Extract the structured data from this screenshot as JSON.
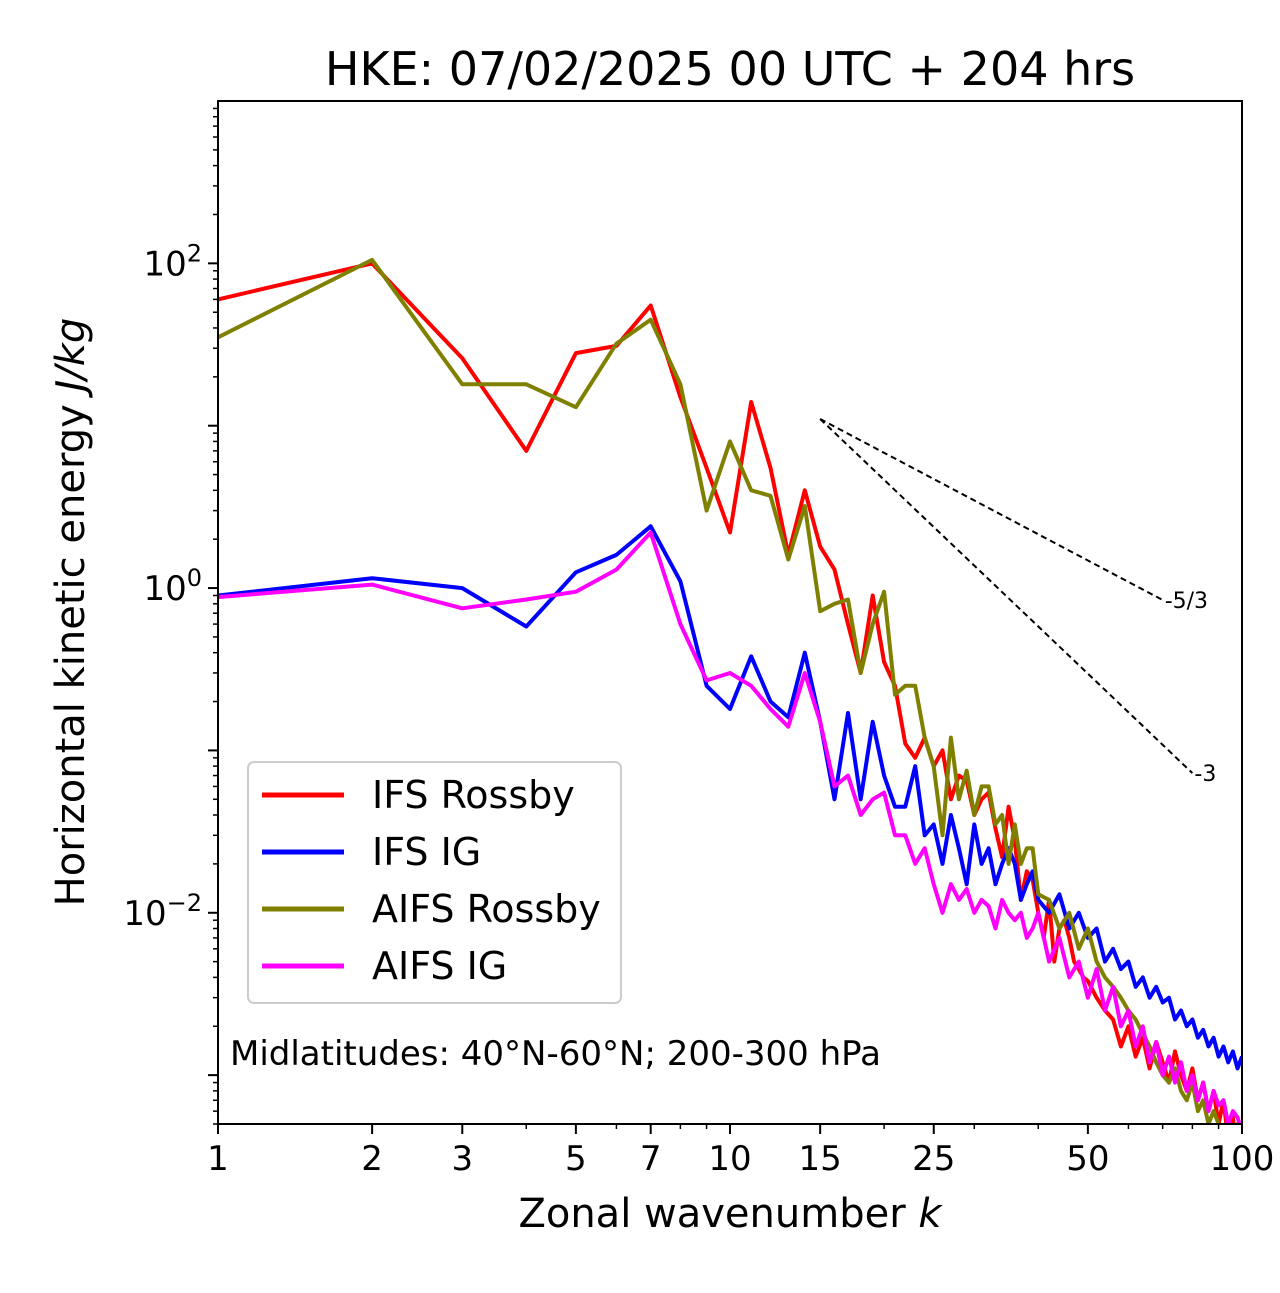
{
  "chart_data": {
    "type": "line",
    "title": "HKE: 07/02/2025 00 UTC + 204 hrs",
    "xlabel": "Zonal wavenumber",
    "xlabel_var": "k",
    "ylabel": "Horizontal kinetic energy",
    "ylabel_unit": "J/kg",
    "xscale": "log",
    "yscale": "log",
    "xlim": [
      1,
      100
    ],
    "ylim": [
      0.0005,
      1000
    ],
    "xticks": [
      1,
      2,
      3,
      5,
      7,
      10,
      15,
      25,
      50,
      100
    ],
    "yticks": [
      {
        "value": 100,
        "base": "10",
        "exp": "2"
      },
      {
        "value": 1,
        "base": "10",
        "exp": "0"
      },
      {
        "value": 0.01,
        "base": "10",
        "exp": "−2"
      }
    ],
    "annotation": "Midlatitudes: 40°N-60°N; 200-300 hPa",
    "legend_position": "lower-left",
    "reference_lines": [
      {
        "label": "-5/3",
        "slope": -1.6667,
        "x0": 15,
        "y0": 11,
        "x1": 70
      },
      {
        "label": "-3",
        "slope": -3,
        "x0": 15,
        "y0": 11,
        "x1": 80
      }
    ],
    "series": [
      {
        "name": "IFS Rossby",
        "color": "#ff0000",
        "x": [
          1,
          2,
          3,
          4,
          5,
          6,
          7,
          8,
          9,
          10,
          11,
          12,
          13,
          14,
          15,
          16,
          17,
          18,
          19,
          20,
          21,
          22,
          23,
          24,
          25,
          26,
          27,
          28,
          29,
          30,
          31,
          32,
          33,
          34,
          35,
          36,
          37,
          38,
          39,
          40,
          41,
          42,
          43,
          44,
          45,
          46,
          47,
          48,
          49,
          50,
          52,
          54,
          56,
          58,
          60,
          62,
          64,
          66,
          68,
          70,
          72,
          74,
          76,
          78,
          80,
          82,
          84,
          86,
          88,
          90,
          92,
          94,
          96,
          98,
          100
        ],
        "y": [
          60,
          100,
          26,
          7,
          28,
          31,
          55,
          15,
          5.5,
          2.2,
          14,
          5.5,
          1.6,
          4,
          1.8,
          1.3,
          0.6,
          0.3,
          0.9,
          0.35,
          0.25,
          0.11,
          0.09,
          0.12,
          0.08,
          0.1,
          0.05,
          0.07,
          0.065,
          0.04,
          0.05,
          0.055,
          0.033,
          0.022,
          0.045,
          0.028,
          0.012,
          0.018,
          0.016,
          0.01,
          0.007,
          0.012,
          0.005,
          0.008,
          0.009,
          0.007,
          0.005,
          0.0045,
          0.004,
          0.0038,
          0.003,
          0.0025,
          0.0022,
          0.0015,
          0.002,
          0.0013,
          0.0017,
          0.0011,
          0.0016,
          0.0012,
          0.0009,
          0.0014,
          0.001,
          0.0008,
          0.0011,
          0.0007,
          0.0009,
          0.0006,
          0.0008,
          0.0005,
          0.0007,
          0.0004,
          0.00055,
          0.0003,
          0.00045
        ]
      },
      {
        "name": "IFS IG",
        "color": "#0000ff",
        "x": [
          1,
          2,
          3,
          4,
          5,
          6,
          7,
          8,
          9,
          10,
          11,
          12,
          13,
          14,
          15,
          16,
          17,
          18,
          19,
          20,
          21,
          22,
          23,
          24,
          25,
          26,
          27,
          28,
          29,
          30,
          31,
          32,
          33,
          34,
          35,
          36,
          37,
          38,
          39,
          40,
          42,
          44,
          46,
          48,
          50,
          52,
          54,
          56,
          58,
          60,
          62,
          64,
          66,
          68,
          70,
          72,
          74,
          76,
          78,
          80,
          82,
          84,
          86,
          88,
          90,
          92,
          94,
          96,
          98,
          100
        ],
        "y": [
          0.9,
          1.15,
          1.0,
          0.58,
          1.25,
          1.6,
          2.4,
          1.1,
          0.25,
          0.18,
          0.38,
          0.2,
          0.16,
          0.4,
          0.15,
          0.05,
          0.17,
          0.05,
          0.15,
          0.07,
          0.045,
          0.045,
          0.08,
          0.03,
          0.035,
          0.02,
          0.04,
          0.025,
          0.015,
          0.035,
          0.02,
          0.025,
          0.015,
          0.02,
          0.025,
          0.02,
          0.012,
          0.015,
          0.018,
          0.012,
          0.01,
          0.013,
          0.008,
          0.01,
          0.007,
          0.008,
          0.005,
          0.006,
          0.0045,
          0.005,
          0.0035,
          0.004,
          0.003,
          0.0035,
          0.0028,
          0.003,
          0.0022,
          0.0025,
          0.002,
          0.0022,
          0.0017,
          0.0019,
          0.0015,
          0.0017,
          0.0013,
          0.0015,
          0.0012,
          0.0014,
          0.0011,
          0.0013
        ]
      },
      {
        "name": "AIFS Rossby",
        "color": "#808000",
        "x": [
          1,
          2,
          3,
          4,
          5,
          6,
          7,
          8,
          9,
          10,
          11,
          12,
          13,
          14,
          15,
          16,
          17,
          18,
          19,
          20,
          21,
          22,
          23,
          24,
          25,
          26,
          27,
          28,
          29,
          30,
          31,
          32,
          33,
          34,
          35,
          36,
          37,
          38,
          39,
          40,
          42,
          44,
          46,
          48,
          50,
          52,
          54,
          56,
          58,
          60,
          62,
          64,
          66,
          68,
          70,
          72,
          74,
          76,
          78,
          80,
          82,
          84,
          86,
          88,
          90,
          92,
          94,
          96,
          98,
          100
        ],
        "y": [
          35,
          105,
          18,
          18,
          13,
          32,
          45,
          18,
          3,
          8,
          4,
          3.7,
          1.5,
          3.2,
          0.72,
          0.8,
          0.85,
          0.3,
          0.6,
          0.95,
          0.22,
          0.25,
          0.25,
          0.12,
          0.08,
          0.03,
          0.12,
          0.05,
          0.075,
          0.04,
          0.06,
          0.06,
          0.035,
          0.04,
          0.02,
          0.035,
          0.02,
          0.025,
          0.025,
          0.013,
          0.012,
          0.008,
          0.01,
          0.006,
          0.008,
          0.005,
          0.004,
          0.0035,
          0.003,
          0.0025,
          0.0022,
          0.0018,
          0.0015,
          0.0012,
          0.001,
          0.0009,
          0.0011,
          0.0008,
          0.0007,
          0.0009,
          0.0006,
          0.0007,
          0.0005,
          0.0006,
          0.0005,
          0.0004,
          0.0005,
          0.0004,
          0.0005,
          0.0004
        ]
      },
      {
        "name": "AIFS IG",
        "color": "#ff00ff",
        "x": [
          1,
          2,
          3,
          4,
          5,
          6,
          7,
          8,
          9,
          10,
          11,
          12,
          13,
          14,
          15,
          16,
          17,
          18,
          19,
          20,
          21,
          22,
          23,
          24,
          25,
          26,
          27,
          28,
          29,
          30,
          31,
          32,
          33,
          34,
          35,
          36,
          37,
          38,
          39,
          40,
          42,
          44,
          46,
          48,
          50,
          52,
          54,
          56,
          58,
          60,
          62,
          64,
          66,
          68,
          70,
          72,
          74,
          76,
          78,
          80,
          82,
          84,
          86,
          88,
          90,
          92,
          94,
          96,
          98,
          100
        ],
        "y": [
          0.88,
          1.05,
          0.75,
          0.85,
          0.95,
          1.3,
          2.2,
          0.6,
          0.27,
          0.3,
          0.25,
          0.18,
          0.14,
          0.3,
          0.15,
          0.06,
          0.07,
          0.04,
          0.05,
          0.055,
          0.03,
          0.03,
          0.02,
          0.025,
          0.015,
          0.01,
          0.015,
          0.012,
          0.014,
          0.01,
          0.012,
          0.011,
          0.008,
          0.012,
          0.01,
          0.009,
          0.01,
          0.007,
          0.008,
          0.01,
          0.005,
          0.007,
          0.004,
          0.005,
          0.003,
          0.0045,
          0.0025,
          0.0035,
          0.002,
          0.0025,
          0.0015,
          0.002,
          0.0012,
          0.0016,
          0.001,
          0.0013,
          0.0009,
          0.0012,
          0.0008,
          0.001,
          0.0007,
          0.0009,
          0.0006,
          0.0008,
          0.00065,
          0.0007,
          0.0005,
          0.0006,
          0.00055,
          0.00045
        ]
      }
    ]
  }
}
